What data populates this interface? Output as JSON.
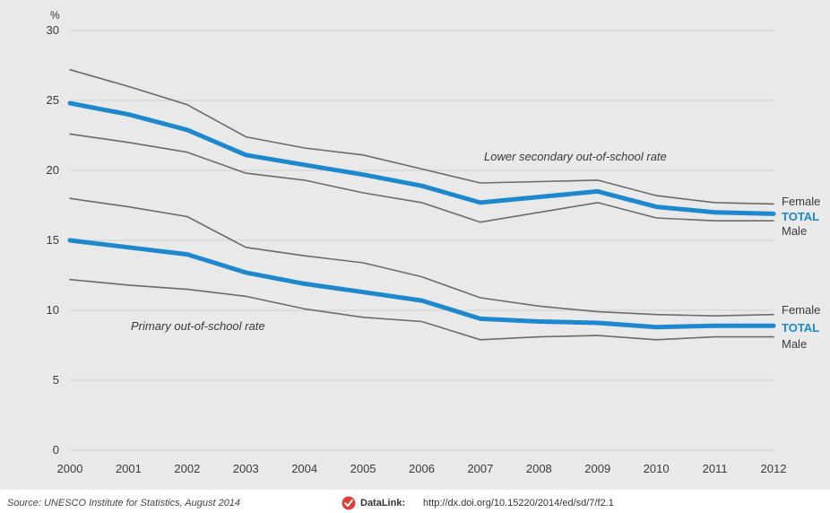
{
  "chart_data": {
    "type": "line",
    "ylabel": "%",
    "ylim": [
      0,
      30
    ],
    "yticks": [
      0,
      5,
      10,
      15,
      20,
      25,
      30
    ],
    "x": [
      "2000",
      "2001",
      "2002",
      "2003",
      "2004",
      "2005",
      "2006",
      "2007",
      "2008",
      "2009",
      "2010",
      "2011",
      "2012"
    ],
    "grid": true,
    "legend": "end-of-line labels (right)",
    "groups": [
      {
        "label": "Lower secondary out-of-school rate",
        "series": [
          {
            "name": "Female",
            "style": "thin",
            "values": [
              27.2,
              26.0,
              24.7,
              22.4,
              21.6,
              21.1,
              20.1,
              19.1,
              19.2,
              19.3,
              18.2,
              17.7,
              17.6
            ]
          },
          {
            "name": "TOTAL",
            "style": "bold",
            "values": [
              24.8,
              24.0,
              22.9,
              21.1,
              20.4,
              19.7,
              18.9,
              17.7,
              18.1,
              18.5,
              17.4,
              17.0,
              16.9
            ]
          },
          {
            "name": "Male",
            "style": "thin",
            "values": [
              22.6,
              22.0,
              21.3,
              19.8,
              19.3,
              18.4,
              17.7,
              16.3,
              17.0,
              17.7,
              16.6,
              16.4,
              16.4
            ]
          }
        ]
      },
      {
        "label": "Primary out-of-school rate",
        "series": [
          {
            "name": "Female",
            "style": "thin",
            "values": [
              18.0,
              17.4,
              16.7,
              14.5,
              13.9,
              13.4,
              12.4,
              10.9,
              10.3,
              9.9,
              9.7,
              9.6,
              9.7
            ]
          },
          {
            "name": "TOTAL",
            "style": "bold",
            "values": [
              15.0,
              14.5,
              14.0,
              12.7,
              11.9,
              11.3,
              10.7,
              9.4,
              9.2,
              9.1,
              8.8,
              8.9,
              8.9
            ]
          },
          {
            "name": "Male",
            "style": "thin",
            "values": [
              12.2,
              11.8,
              11.5,
              11.0,
              10.1,
              9.5,
              9.2,
              7.9,
              8.1,
              8.2,
              7.9,
              8.1,
              8.1
            ]
          }
        ]
      }
    ],
    "colors": {
      "total": "#1e88cf",
      "thin": "#6b6b6b",
      "grid": "#cfcfcf"
    }
  },
  "footer": {
    "source": "Source: UNESCO Institute for Statistics, August 2014",
    "datalink_label": "DataLink:",
    "datalink_url": "http://dx.doi.org/10.15220/2014/ed/sd/7/f2.1",
    "datalink_icon": "check-badge-icon",
    "icon_color": "#d9413a"
  }
}
